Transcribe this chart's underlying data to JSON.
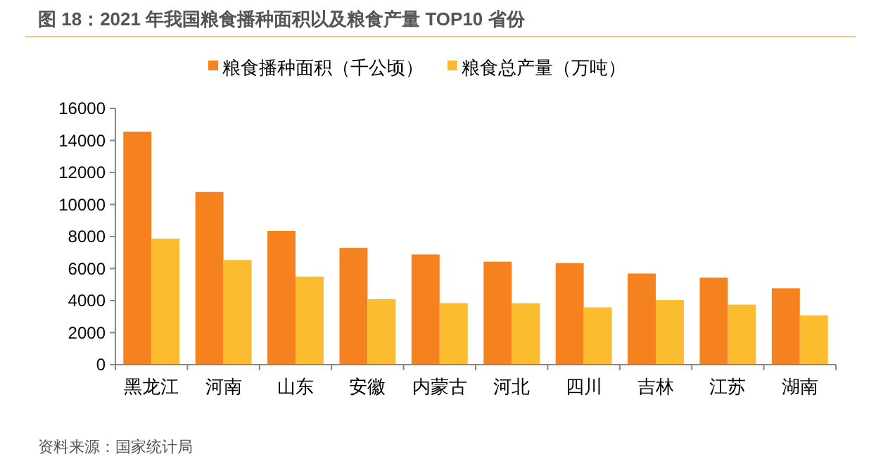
{
  "chart_data": {
    "type": "bar",
    "title": "图 18：2021 年我国粮食播种面积以及粮食产量 TOP10 省份",
    "categories": [
      "黑龙江",
      "河南",
      "山东",
      "安徽",
      "内蒙古",
      "河北",
      "四川",
      "吉林",
      "江苏",
      "湖南"
    ],
    "series": [
      {
        "name": "粮食播种面积（千公顷）",
        "color": "#f5821f",
        "values": [
          14550,
          10780,
          8350,
          7290,
          6880,
          6430,
          6340,
          5690,
          5430,
          4770
        ]
      },
      {
        "name": "粮食总产量（万吨）",
        "color": "#fbbc2f",
        "values": [
          7870,
          6540,
          5500,
          4090,
          3840,
          3830,
          3580,
          4040,
          3750,
          3070
        ]
      }
    ],
    "ylim": [
      0,
      16000
    ],
    "yticks": [
      0,
      2000,
      4000,
      6000,
      8000,
      10000,
      12000,
      14000,
      16000
    ],
    "grid": false,
    "legend": "top",
    "annotations": [
      "资料来源：国家统计局"
    ]
  }
}
